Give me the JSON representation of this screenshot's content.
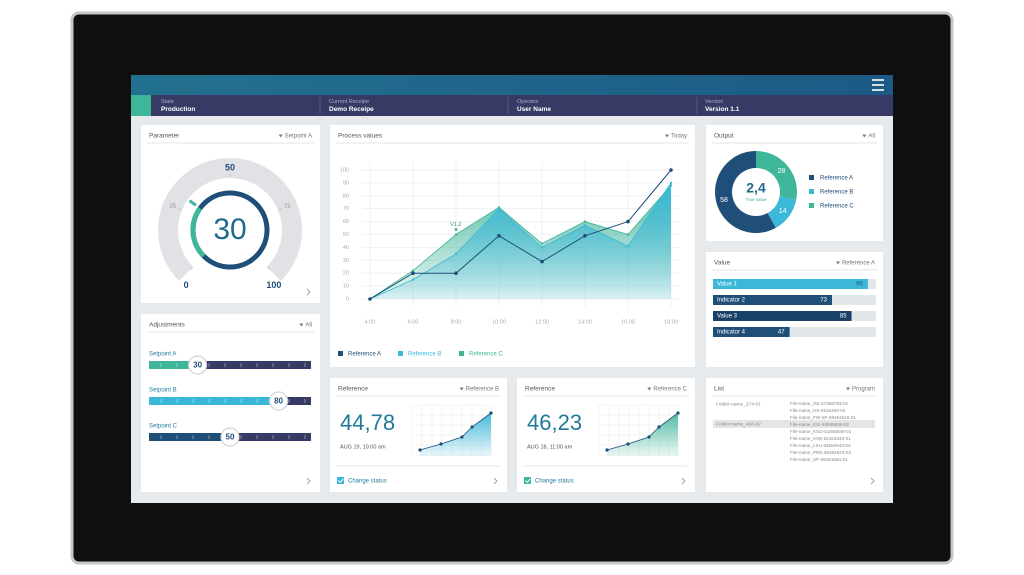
{
  "header": {
    "state": {
      "label": "State",
      "value": "Production"
    },
    "recipe": {
      "label": "Current Receipe",
      "value": "Demo Receipe"
    },
    "operator": {
      "label": "Operator",
      "value": "User Name"
    },
    "version": {
      "label": "Version",
      "value": "Version 1.1"
    }
  },
  "parameter": {
    "title": "Parameter",
    "filter": "Setpoint A",
    "gauge": {
      "value": 30,
      "ticks": [
        0,
        25,
        50,
        75,
        100
      ],
      "color": "#3fb59a"
    }
  },
  "adjustments": {
    "title": "Adjustments",
    "filter": "All",
    "sliders": [
      {
        "name": "Setpoint A",
        "value": 30,
        "color": "#3fb59a"
      },
      {
        "name": "Setpoint B",
        "value": 80,
        "color": "#3bb8d8"
      },
      {
        "name": "Setpoint C",
        "value": 50,
        "color": "#1f4e79"
      }
    ]
  },
  "process_values": {
    "title": "Process values",
    "filter": "Today",
    "chart": {
      "type": "line",
      "categories": [
        "4:00",
        "6:00",
        "8:00",
        "10:00",
        "12:00",
        "14:00",
        "16:00",
        "18:00"
      ],
      "series": [
        {
          "name": "Reference A",
          "color": "#1f4e79",
          "values": [
            0,
            20,
            20,
            49,
            29,
            49,
            60,
            100
          ]
        },
        {
          "name": "Reference B",
          "color": "#3bb8d8",
          "values": [
            0,
            15,
            35,
            70,
            40,
            57,
            41,
            90
          ]
        },
        {
          "name": "Reference C",
          "color": "#3fb59a",
          "values": [
            0,
            22,
            50,
            71,
            43,
            60,
            50,
            88
          ]
        }
      ],
      "ylim": [
        0,
        100
      ],
      "yticks": [
        0,
        10,
        20,
        30,
        40,
        50,
        60,
        70,
        80,
        90,
        100
      ],
      "grid": true,
      "annotation": {
        "text": "V1.2",
        "x": "8:00",
        "y": 54
      }
    }
  },
  "output": {
    "title": "Output",
    "filter": "All",
    "chart": {
      "type": "pie",
      "center_value": "2,4",
      "center_label": "True value",
      "series": [
        {
          "name": "Reference A",
          "color": "#1f4e79",
          "value": 58
        },
        {
          "name": "Reference B",
          "color": "#3bb8d8",
          "value": 14
        },
        {
          "name": "Reference C",
          "color": "#3fb59a",
          "value": 28
        }
      ]
    }
  },
  "value": {
    "title": "Value",
    "filter": "Reference A",
    "chart": {
      "type": "bar",
      "categories": [
        "Value 1",
        "Indicator 2",
        "Value 3",
        "Indicator 4"
      ],
      "values": [
        95,
        73,
        85,
        47
      ],
      "colors": [
        "#3bb8d8",
        "#1f4e79",
        "#1a4269",
        "#1f4e79"
      ]
    }
  },
  "reference_b": {
    "title": "Reference",
    "filter": "Reference B",
    "value": "44,78",
    "date": "AUG 19, 10:00 am",
    "checkbox": "Change status",
    "color": "#3bb8d8"
  },
  "reference_c": {
    "title": "Reference",
    "filter": "Reference C",
    "value": "46,23",
    "date": "AUG 18, 11:00 am",
    "checkbox": "Change status",
    "color": "#3fb59a"
  },
  "list": {
    "title": "List",
    "filter": "Program",
    "folders": [
      "Folder-name_274-01",
      "Folder-name_468-02"
    ],
    "selected": 1,
    "files": [
      "File-name_GE-27458793-01",
      "File-name_HS-5618468-04",
      "File-name_FW-SF-69454618-01",
      "File-name_KSI-46846836-02",
      "File-name_KSO-51846846-01",
      "File-name_IOW-54164343-01",
      "File-name_LSU-64684543-03",
      "File-name_PRE-65484643-02",
      "File-name_SP-65181684-01"
    ]
  }
}
